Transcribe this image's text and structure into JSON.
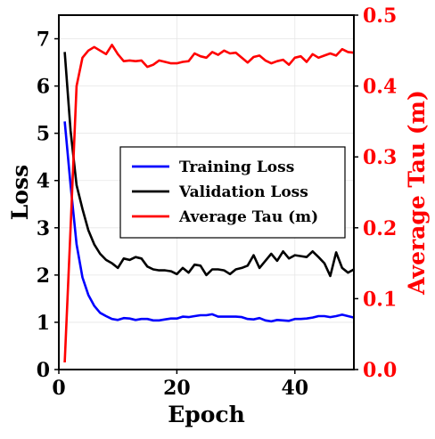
{
  "chart_data": {
    "type": "line",
    "xlabel": "Epoch",
    "ylabel_left": "Loss",
    "ylabel_right": "Average Tau (m)",
    "xlim": [
      0,
      50
    ],
    "ylim_left": [
      0,
      7.5
    ],
    "ylim_right": [
      0,
      0.5
    ],
    "x_ticks": [
      "0",
      "20",
      "40"
    ],
    "x_tick_values": [
      0,
      20,
      40
    ],
    "y_ticks_left": [
      "0",
      "1",
      "2",
      "3",
      "4",
      "5",
      "6",
      "7"
    ],
    "y_tick_values_left": [
      0,
      1,
      2,
      3,
      4,
      5,
      6,
      7
    ],
    "y_ticks_right": [
      "0.0",
      "0.1",
      "0.2",
      "0.3",
      "0.4",
      "0.5"
    ],
    "y_tick_values_right": [
      0.0,
      0.1,
      0.2,
      0.3,
      0.4,
      0.5
    ],
    "grid": true,
    "legend_position": "center-right",
    "colors": {
      "right_axis": "#ff0000"
    },
    "series": [
      {
        "name": "Training Loss",
        "axis": "left",
        "color": "#0000ff",
        "x": [
          1,
          2,
          3,
          4,
          5,
          6,
          7,
          8,
          9,
          10,
          11,
          12,
          13,
          14,
          15,
          16,
          17,
          18,
          19,
          20,
          21,
          22,
          23,
          24,
          25,
          26,
          27,
          28,
          29,
          30,
          31,
          32,
          33,
          34,
          35,
          36,
          37,
          38,
          39,
          40,
          41,
          42,
          43,
          44,
          45,
          46,
          47,
          48,
          49,
          50
        ],
        "values": [
          5.25,
          3.9,
          2.65,
          1.95,
          1.58,
          1.35,
          1.2,
          1.13,
          1.07,
          1.05,
          1.09,
          1.08,
          1.05,
          1.07,
          1.07,
          1.04,
          1.04,
          1.06,
          1.08,
          1.08,
          1.12,
          1.11,
          1.13,
          1.15,
          1.15,
          1.17,
          1.12,
          1.12,
          1.12,
          1.12,
          1.11,
          1.07,
          1.06,
          1.09,
          1.04,
          1.02,
          1.05,
          1.04,
          1.03,
          1.07,
          1.07,
          1.08,
          1.1,
          1.13,
          1.13,
          1.11,
          1.13,
          1.16,
          1.13,
          1.1
        ]
      },
      {
        "name": "Validation Loss",
        "axis": "left",
        "color": "#000000",
        "x": [
          1,
          2,
          3,
          4,
          5,
          6,
          7,
          8,
          9,
          10,
          11,
          12,
          13,
          14,
          15,
          16,
          17,
          18,
          19,
          20,
          21,
          22,
          23,
          24,
          25,
          26,
          27,
          28,
          29,
          30,
          31,
          32,
          33,
          34,
          35,
          36,
          37,
          38,
          39,
          40,
          41,
          42,
          43,
          44,
          45,
          46,
          47,
          48,
          49,
          50
        ],
        "values": [
          6.72,
          5.05,
          3.9,
          3.4,
          2.95,
          2.65,
          2.45,
          2.32,
          2.25,
          2.15,
          2.35,
          2.32,
          2.38,
          2.35,
          2.18,
          2.12,
          2.1,
          2.1,
          2.08,
          2.02,
          2.15,
          2.05,
          2.22,
          2.2,
          2.0,
          2.12,
          2.12,
          2.1,
          2.02,
          2.12,
          2.15,
          2.2,
          2.42,
          2.15,
          2.3,
          2.45,
          2.3,
          2.5,
          2.35,
          2.42,
          2.4,
          2.38,
          2.5,
          2.38,
          2.25,
          1.98,
          2.48,
          2.15,
          2.05,
          2.12
        ]
      },
      {
        "name": "Average Tau (m)",
        "axis": "right",
        "color": "#ff0000",
        "x": [
          1,
          2,
          3,
          4,
          5,
          6,
          7,
          8,
          9,
          10,
          11,
          12,
          13,
          14,
          15,
          16,
          17,
          18,
          19,
          20,
          21,
          22,
          23,
          24,
          25,
          26,
          27,
          28,
          29,
          30,
          31,
          32,
          33,
          34,
          35,
          36,
          37,
          38,
          39,
          40,
          41,
          42,
          43,
          44,
          45,
          46,
          47,
          48,
          49,
          50
        ],
        "values": [
          0.01,
          0.2,
          0.4,
          0.44,
          0.45,
          0.455,
          0.45,
          0.445,
          0.458,
          0.445,
          0.435,
          0.436,
          0.435,
          0.436,
          0.427,
          0.43,
          0.436,
          0.434,
          0.432,
          0.432,
          0.434,
          0.435,
          0.446,
          0.442,
          0.44,
          0.448,
          0.444,
          0.45,
          0.446,
          0.447,
          0.44,
          0.433,
          0.441,
          0.443,
          0.436,
          0.432,
          0.435,
          0.437,
          0.43,
          0.44,
          0.442,
          0.434,
          0.445,
          0.44,
          0.443,
          0.446,
          0.443,
          0.452,
          0.448,
          0.447
        ]
      }
    ]
  }
}
